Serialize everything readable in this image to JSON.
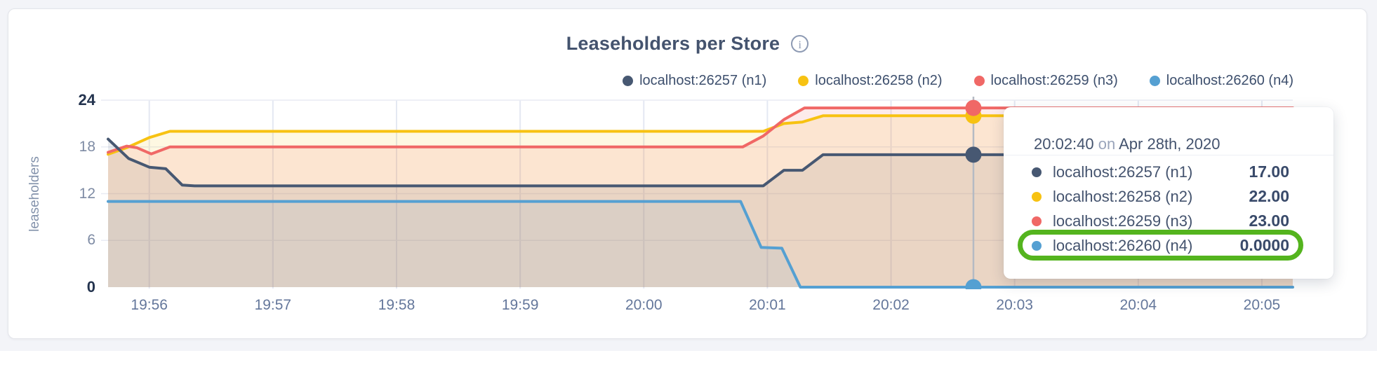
{
  "page": {
    "title": "Leaseholders per Store",
    "info_icon_glyph": "i"
  },
  "legend": {
    "items": [
      {
        "label": "localhost:26257 (n1)"
      },
      {
        "label": "localhost:26258 (n2)"
      },
      {
        "label": "localhost:26259 (n3)"
      },
      {
        "label": "localhost:26260 (n4)"
      }
    ]
  },
  "chart_data": {
    "type": "area",
    "title": "Leaseholders per Store",
    "ylabel": "leaseholders",
    "ylim": [
      0,
      24
    ],
    "grid": true,
    "legend_position": "top-right",
    "y_ticks": [
      {
        "v": 0,
        "label": "0",
        "bold": true
      },
      {
        "v": 6,
        "label": "6",
        "bold": false
      },
      {
        "v": 12,
        "label": "12",
        "bold": false
      },
      {
        "v": 18,
        "label": "18",
        "bold": false
      },
      {
        "v": 24,
        "label": "24",
        "bold": true
      }
    ],
    "x_axis_note": "time of day, t = seconds since 19:55:40 on Apr 28th 2020",
    "x_range_seconds": [
      0,
      575
    ],
    "x_ticks": [
      {
        "t": 20,
        "label": "19:56"
      },
      {
        "t": 80,
        "label": "19:57"
      },
      {
        "t": 140,
        "label": "19:58"
      },
      {
        "t": 200,
        "label": "19:59"
      },
      {
        "t": 260,
        "label": "20:00"
      },
      {
        "t": 320,
        "label": "20:01"
      },
      {
        "t": 380,
        "label": "20:02"
      },
      {
        "t": 440,
        "label": "20:03"
      },
      {
        "t": 500,
        "label": "20:04"
      },
      {
        "t": 560,
        "label": "20:05"
      }
    ],
    "series": [
      {
        "name": "localhost:26257 (n1)",
        "color": "#475872",
        "fill_opacity": 0.12,
        "points": [
          [
            0,
            19
          ],
          [
            10,
            16.5
          ],
          [
            20,
            15.4
          ],
          [
            28,
            15.2
          ],
          [
            36,
            13.1
          ],
          [
            42,
            13
          ],
          [
            318,
            13
          ],
          [
            328,
            15
          ],
          [
            337,
            15
          ],
          [
            347,
            17
          ],
          [
            575,
            17
          ]
        ]
      },
      {
        "name": "localhost:26258 (n2)",
        "color": "#f7c212",
        "fill_opacity": 0.12,
        "points": [
          [
            0,
            17.05
          ],
          [
            9,
            17.9
          ],
          [
            20,
            19.2
          ],
          [
            30,
            20
          ],
          [
            318,
            20
          ],
          [
            328,
            21
          ],
          [
            337,
            21.2
          ],
          [
            347,
            22
          ],
          [
            575,
            22
          ]
        ]
      },
      {
        "name": "localhost:26259 (n3)",
        "color": "#f06866",
        "fill_opacity": 0.13,
        "points": [
          [
            0,
            17.3
          ],
          [
            9,
            18.1
          ],
          [
            14,
            17.9
          ],
          [
            21,
            17.1
          ],
          [
            30,
            18
          ],
          [
            308,
            18
          ],
          [
            318,
            19.4
          ],
          [
            328,
            21.5
          ],
          [
            338,
            23
          ],
          [
            575,
            23
          ]
        ]
      },
      {
        "name": "localhost:26260 (n4)",
        "color": "#55a0d2",
        "fill_opacity": 0.1,
        "points": [
          [
            0,
            11
          ],
          [
            307,
            11
          ],
          [
            317,
            5.1
          ],
          [
            327,
            5
          ],
          [
            336,
            0
          ],
          [
            575,
            0
          ]
        ]
      }
    ],
    "hover": {
      "t": 420,
      "time_label": "20:02:40",
      "values": [
        17,
        22,
        23,
        0
      ]
    }
  },
  "tooltip": {
    "time": "20:02:40",
    "on": " on ",
    "date": "Apr 28th, 2020",
    "rows": [
      {
        "label": "localhost:26257 (n1)",
        "value": "17.00"
      },
      {
        "label": "localhost:26258 (n2)",
        "value": "22.00"
      },
      {
        "label": "localhost:26259 (n3)",
        "value": "23.00"
      },
      {
        "label": "localhost:26260 (n4)",
        "value": "0.0000",
        "highlighted": true
      }
    ],
    "highlight_color": "#54b41e"
  }
}
